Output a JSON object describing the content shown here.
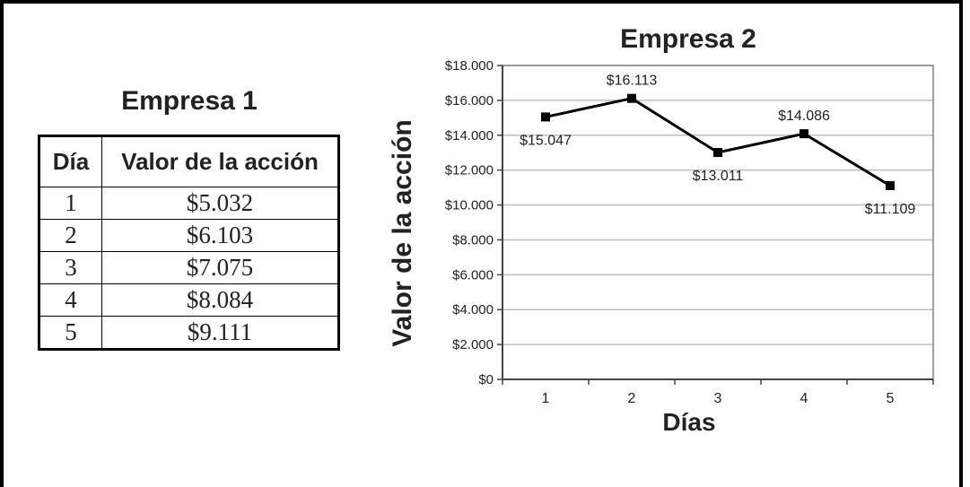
{
  "table": {
    "title": "Empresa 1",
    "headers": [
      "Día",
      "Valor de la acción"
    ],
    "rows": [
      {
        "dia": "1",
        "valor": "$5.032"
      },
      {
        "dia": "2",
        "valor": "$6.103"
      },
      {
        "dia": "3",
        "valor": "$7.075"
      },
      {
        "dia": "4",
        "valor": "$8.084"
      },
      {
        "dia": "5",
        "valor": "$9.111"
      }
    ]
  },
  "chart_data": {
    "type": "line",
    "title": "Empresa 2",
    "xlabel": "Días",
    "ylabel": "Valor de la acción",
    "categories": [
      "1",
      "2",
      "3",
      "4",
      "5"
    ],
    "values": [
      15047,
      16113,
      13011,
      14086,
      11109
    ],
    "data_labels": [
      "$15.047",
      "$16.113",
      "$13.011",
      "$14.086",
      "$11.109"
    ],
    "ylim": [
      0,
      18000
    ],
    "yticks": [
      0,
      2000,
      4000,
      6000,
      8000,
      10000,
      12000,
      14000,
      16000,
      18000
    ],
    "ytick_labels": [
      "$0",
      "$2.000",
      "$4.000",
      "$6.000",
      "$8.000",
      "$10.000",
      "$12.000",
      "$14.000",
      "$16.000",
      "$18.000"
    ],
    "grid": true,
    "legend": "none",
    "line_color": "#000000",
    "grid_color": "#bdbdbd"
  }
}
